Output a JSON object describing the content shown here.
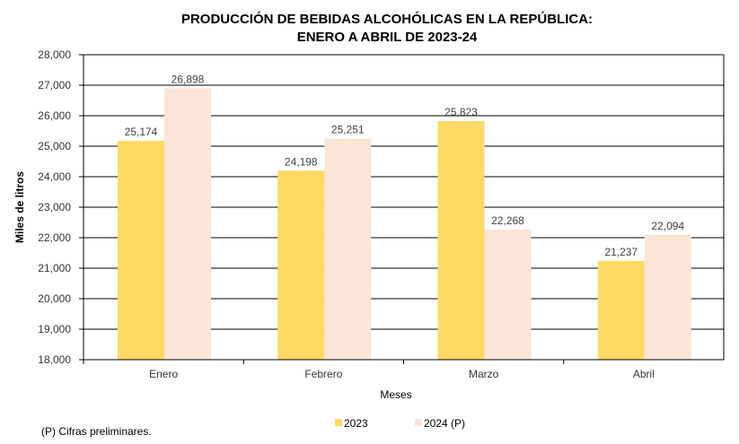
{
  "chart_data": {
    "type": "bar",
    "title": [
      "PRODUCCIÓN DE BEBIDAS ALCOHÓLICAS EN LA REPÚBLICA:",
      "ENERO A ABRIL DE 2023-24"
    ],
    "xlabel": "Meses",
    "ylabel": "Miles de litros",
    "categories": [
      "Enero",
      "Febrero",
      "Marzo",
      "Abril"
    ],
    "series": [
      {
        "name": "2023",
        "color": "#FFD966",
        "values": [
          25174,
          24198,
          25823,
          21237
        ],
        "labels": [
          "25,174",
          "24,198",
          "25,823",
          "21,237"
        ]
      },
      {
        "name": "2024 (P)",
        "color": "#FBE5D6",
        "values": [
          26898,
          25251,
          22268,
          22094
        ],
        "labels": [
          "26,898",
          "25,251",
          "22,268",
          "22,094"
        ]
      }
    ],
    "ylim": [
      18000,
      28000
    ],
    "yticks": [
      18000,
      19000,
      20000,
      21000,
      22000,
      23000,
      24000,
      25000,
      26000,
      27000,
      28000
    ],
    "ytick_labels": [
      "18,000",
      "19,000",
      "20,000",
      "21,000",
      "22,000",
      "23,000",
      "24,000",
      "25,000",
      "26,000",
      "27,000",
      "28,000"
    ],
    "grid": true,
    "legend": "bottom-center",
    "footnote": "(P) Cifras  preliminares."
  }
}
